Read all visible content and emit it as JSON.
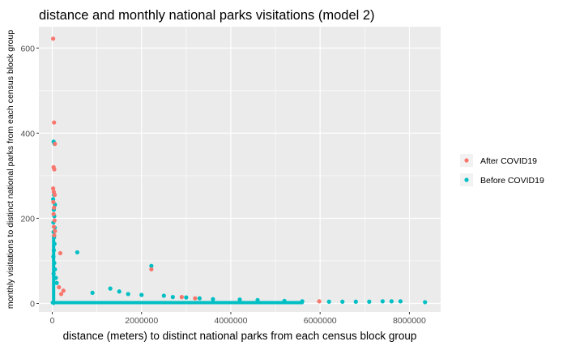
{
  "chart_data": {
    "type": "scatter",
    "title": "distance and monthly national parks visitations (model 2)",
    "xlabel": "distance (meters) to distinct national parks from each census block group",
    "ylabel": "monthly visitations to distinct national parks from each census block group",
    "xlim": [
      -300000,
      8700000
    ],
    "ylim": [
      -20,
      650
    ],
    "x_ticks": [
      0,
      2000000,
      4000000,
      6000000,
      8000000
    ],
    "x_tick_labels": [
      "0",
      "2000000",
      "4000000",
      "6000000",
      "8000000"
    ],
    "y_ticks": [
      0,
      200,
      400,
      600
    ],
    "y_tick_labels": [
      "0",
      "200",
      "400",
      "600"
    ],
    "grid": true,
    "legend_position": "right",
    "series": [
      {
        "name": "After COVID19",
        "color": "#F8766D",
        "points": [
          [
            20000,
            622
          ],
          [
            40000,
            425
          ],
          [
            60000,
            375
          ],
          [
            30000,
            320
          ],
          [
            45000,
            315
          ],
          [
            20000,
            270
          ],
          [
            35000,
            262
          ],
          [
            55000,
            255
          ],
          [
            25000,
            238
          ],
          [
            40000,
            225
          ],
          [
            30000,
            210
          ],
          [
            50000,
            195
          ],
          [
            35000,
            180
          ],
          [
            60000,
            170
          ],
          [
            45000,
            160
          ],
          [
            180000,
            118
          ],
          [
            2220000,
            80
          ],
          [
            150000,
            38
          ],
          [
            250000,
            30
          ],
          [
            200000,
            22
          ],
          [
            2900000,
            15
          ],
          [
            3200000,
            12
          ],
          [
            5980000,
            5
          ]
        ]
      },
      {
        "name": "Before COVID19",
        "color": "#00BFC4",
        "points": [
          [
            30000,
            380
          ],
          [
            50000,
            375
          ],
          [
            40000,
            255
          ],
          [
            20000,
            245
          ],
          [
            60000,
            232
          ],
          [
            35000,
            220
          ],
          [
            45000,
            205
          ],
          [
            25000,
            190
          ],
          [
            55000,
            178
          ],
          [
            30000,
            168
          ],
          [
            40000,
            155
          ],
          [
            50000,
            140
          ],
          [
            35000,
            125
          ],
          [
            25000,
            110
          ],
          [
            45000,
            95
          ],
          [
            60000,
            80
          ],
          [
            30000,
            70
          ],
          [
            80000,
            60
          ],
          [
            100000,
            48
          ],
          [
            560000,
            120
          ],
          [
            2220000,
            88
          ],
          [
            1300000,
            35
          ],
          [
            900000,
            25
          ],
          [
            1500000,
            28
          ],
          [
            1700000,
            22
          ],
          [
            2000000,
            20
          ],
          [
            2500000,
            18
          ],
          [
            2700000,
            15
          ],
          [
            3000000,
            14
          ],
          [
            3300000,
            12
          ],
          [
            3600000,
            10
          ],
          [
            4200000,
            9
          ],
          [
            4600000,
            8
          ],
          [
            5200000,
            6
          ],
          [
            5600000,
            5
          ],
          [
            6200000,
            4
          ],
          [
            6500000,
            4
          ],
          [
            6800000,
            4
          ],
          [
            7100000,
            4
          ],
          [
            7400000,
            5
          ],
          [
            7600000,
            5
          ],
          [
            7800000,
            5
          ],
          [
            8350000,
            3
          ]
        ]
      }
    ]
  }
}
